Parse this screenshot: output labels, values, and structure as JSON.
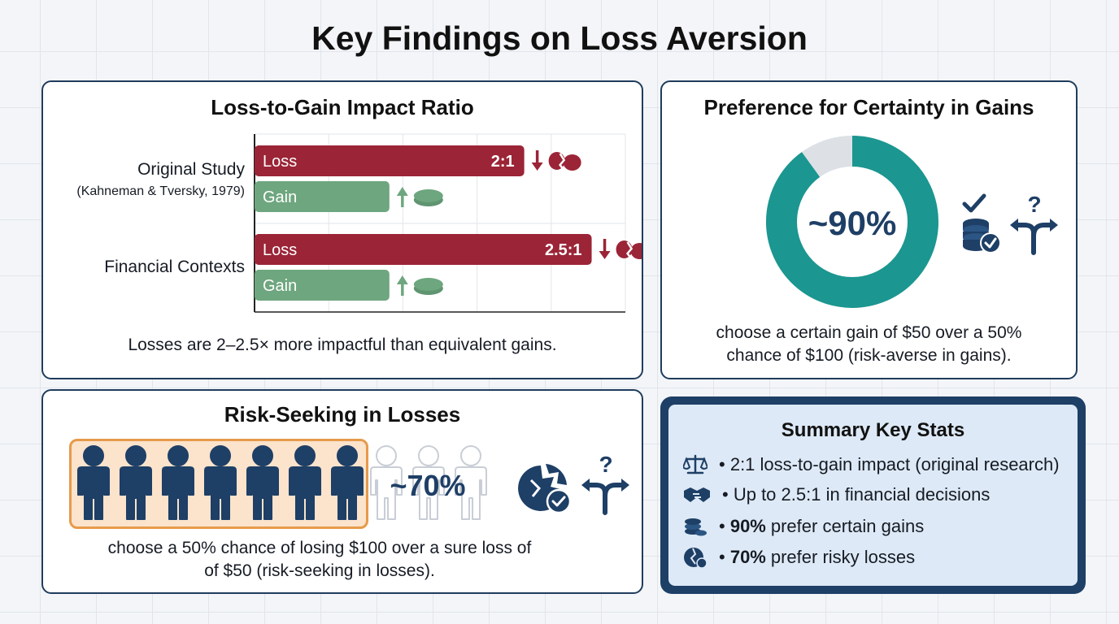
{
  "title": "Key Findings on Loss Aversion",
  "ratio_panel": {
    "title": "Loss-to-Gain Impact Ratio",
    "caption": "Losses are 2–2.5× more impactful than equivalent gains."
  },
  "chart_data": {
    "type": "bar",
    "orientation": "horizontal",
    "title": "Loss-to-Gain Impact Ratio",
    "categories": [
      {
        "label": "Original Study",
        "sublabel": "(Kahneman & Tversky, 1979)"
      },
      {
        "label": "Financial Contexts",
        "sublabel": ""
      }
    ],
    "series": [
      {
        "name": "Loss",
        "values": [
          2,
          2.5
        ],
        "value_labels": [
          "2:1",
          "2.5:1"
        ],
        "color": "#9b2436"
      },
      {
        "name": "Gain",
        "values": [
          1,
          1
        ],
        "value_labels": [
          "",
          ""
        ],
        "color": "#6ea67f"
      }
    ],
    "xlim": [
      0,
      2.75
    ],
    "grid": true
  },
  "certainty_panel": {
    "title": "Preference for Certainty in Gains",
    "percent_label": "~90%",
    "percent_value": 90,
    "caption_line1": "choose a certain gain of $50 over a 50%",
    "caption_line2": "chance of $100 (risk-averse in gains).",
    "ring_color": "#1b9690",
    "rest_color": "#dde1e6"
  },
  "risk_panel": {
    "title": "Risk-Seeking in Losses",
    "percent_label": "~70%",
    "people_total": 10,
    "people_highlighted": 7,
    "caption_line1": "choose a 50% chance of losing $100 over a sure loss of",
    "caption_line2": "of $50 (risk-seeking in losses)."
  },
  "summary": {
    "title": "Summary Key Stats",
    "items": [
      {
        "icon": "scale-icon",
        "bold": "",
        "text": "2:1 loss-to-gain impact (original research)"
      },
      {
        "icon": "handshake-icon",
        "bold": "",
        "text": "Up to 2.5:1 in financial decisions"
      },
      {
        "icon": "coins-icon",
        "bold": "90%",
        "text": "prefer certain gains"
      },
      {
        "icon": "broken-coin-icon",
        "bold": "70%",
        "text": "prefer risky losses"
      }
    ]
  },
  "colors": {
    "navy": "#1e3f66",
    "loss": "#9b2436",
    "gain": "#6ea67f",
    "teal": "#1b9690",
    "orange": "#e79a4a"
  }
}
